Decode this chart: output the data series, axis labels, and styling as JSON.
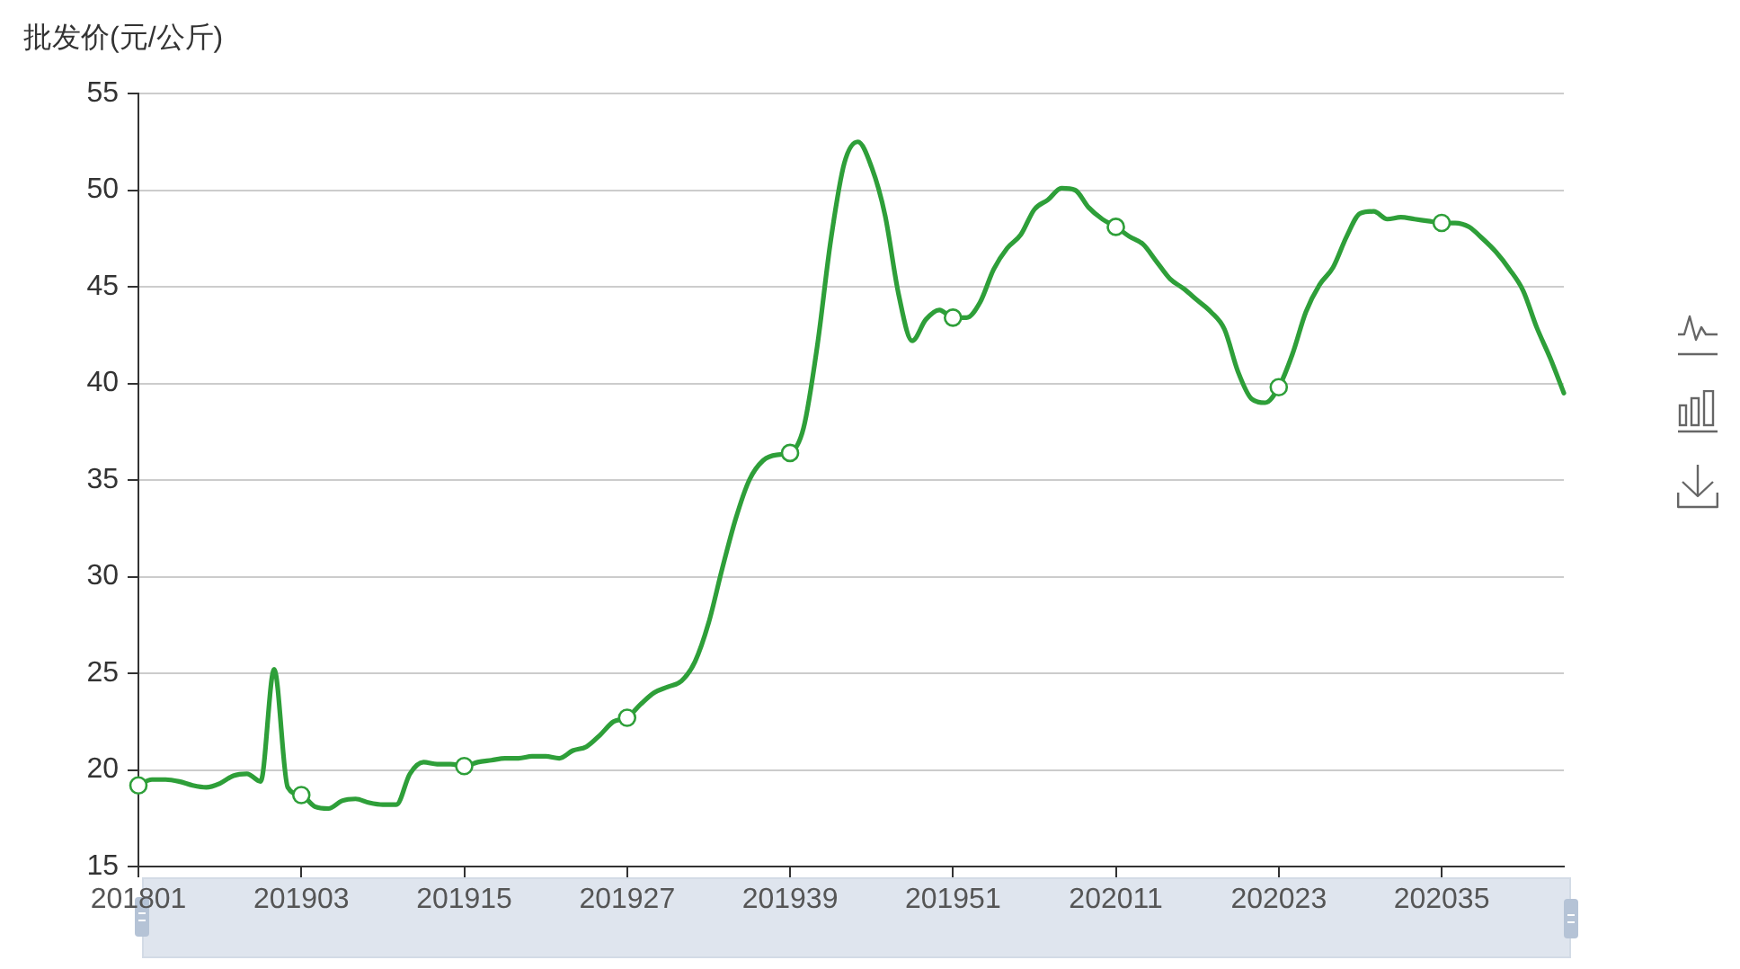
{
  "chart_data": {
    "type": "line",
    "ylabel": "批发价(元/公斤)",
    "categories": [
      "201801",
      null,
      null,
      null,
      null,
      null,
      null,
      null,
      null,
      null,
      null,
      null,
      "201903",
      null,
      null,
      null,
      null,
      null,
      null,
      null,
      null,
      null,
      null,
      null,
      "201915",
      null,
      null,
      null,
      null,
      null,
      null,
      null,
      null,
      null,
      null,
      null,
      "201927",
      null,
      null,
      null,
      null,
      null,
      null,
      null,
      null,
      null,
      null,
      null,
      "201939",
      null,
      null,
      null,
      null,
      null,
      null,
      null,
      null,
      null,
      null,
      null,
      "201951",
      null,
      null,
      null,
      null,
      null,
      null,
      null,
      null,
      null,
      null,
      null,
      "202011",
      null,
      null,
      null,
      null,
      null,
      null,
      null,
      null,
      null,
      null,
      null,
      "202023",
      null,
      null,
      null,
      null,
      null,
      null,
      null,
      null,
      null,
      null,
      null,
      "202035",
      null,
      null,
      null,
      null,
      null,
      null,
      null,
      null,
      null
    ],
    "values": [
      19.2,
      19.5,
      19.5,
      19.4,
      19.2,
      19.1,
      19.3,
      19.7,
      19.8,
      19.4,
      25.2,
      19.1,
      18.7,
      18.1,
      18.0,
      18.4,
      18.5,
      18.3,
      18.2,
      18.2,
      19.8,
      20.4,
      20.3,
      20.3,
      20.2,
      20.4,
      20.5,
      20.6,
      20.6,
      20.7,
      20.7,
      20.6,
      21.0,
      21.2,
      21.8,
      22.5,
      22.7,
      23.4,
      24.0,
      24.3,
      24.6,
      25.6,
      27.6,
      30.4,
      33.0,
      35.0,
      36.0,
      36.3,
      36.4,
      37.7,
      41.9,
      47.4,
      51.4,
      52.5,
      51.2,
      48.7,
      44.6,
      42.2,
      43.3,
      43.8,
      43.4,
      43.4,
      44.2,
      45.9,
      47.0,
      47.7,
      49.0,
      49.5,
      50.1,
      50.0,
      49.1,
      48.5,
      48.1,
      47.6,
      47.2,
      46.3,
      45.4,
      44.9,
      44.3,
      43.7,
      42.8,
      40.6,
      39.2,
      39.0,
      39.8,
      41.5,
      43.7,
      45.1,
      46.0,
      47.6,
      48.8,
      48.9,
      48.5,
      48.6,
      48.5,
      48.4,
      48.3,
      48.3,
      48.1,
      47.5,
      46.8,
      45.9,
      44.8,
      42.9,
      41.3,
      39.5
    ],
    "color": "#2e9f39",
    "line_style": "solid",
    "ylim": [
      15,
      55
    ],
    "yticks": [
      15,
      20,
      25,
      30,
      35,
      40,
      45,
      50,
      55
    ],
    "grid": "y"
  }
}
